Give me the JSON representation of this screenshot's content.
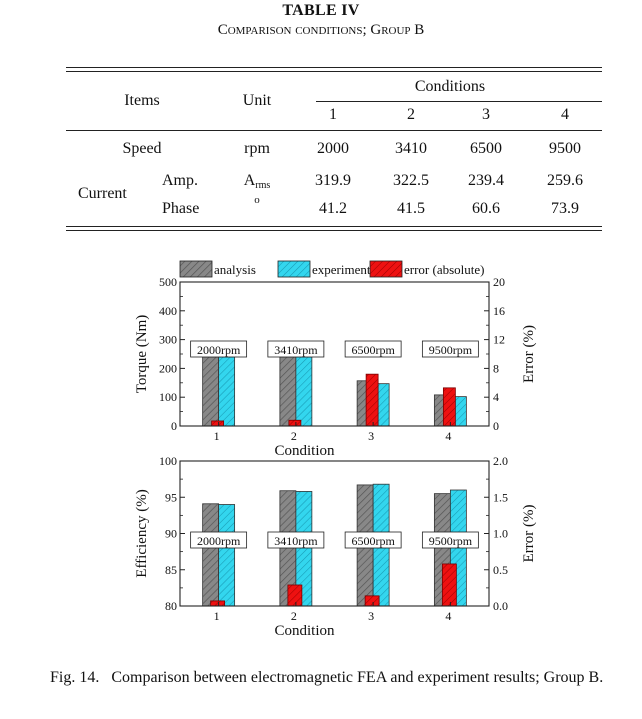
{
  "table": {
    "caption_title": "TABLE IV",
    "caption_sub": "Comparison conditions; Group B",
    "headers": {
      "items": "Items",
      "unit": "Unit",
      "conditions": "Conditions"
    },
    "condition_numbers": [
      "1",
      "2",
      "3",
      "4"
    ],
    "rows": {
      "speed": {
        "label": "Speed",
        "unit": "rpm",
        "values": [
          "2000",
          "3410",
          "6500",
          "9500"
        ]
      },
      "current_label": "Current",
      "amp": {
        "label": "Amp.",
        "unit_main": "A",
        "unit_sub": "rms",
        "values": [
          "319.9",
          "322.5",
          "239.4",
          "259.6"
        ]
      },
      "phase": {
        "label": "Phase",
        "unit": "o",
        "values": [
          "41.2",
          "41.5",
          "60.6",
          "73.9"
        ]
      }
    }
  },
  "chart_data": [
    {
      "type": "bar",
      "categories": [
        "1",
        "2",
        "3",
        "4"
      ],
      "category_tags": [
        "2000rpm",
        "3410rpm",
        "6500rpm",
        "9500rpm"
      ],
      "series": [
        {
          "name": "analysis",
          "axis": "left",
          "color": "#888888",
          "values": [
            240,
            240,
            157,
            108
          ]
        },
        {
          "name": "experiment",
          "axis": "left",
          "color": "#33d6ee",
          "values": [
            240,
            240,
            147,
            102
          ]
        },
        {
          "name": "error (absolute)",
          "axis": "right",
          "color": "#ee1111",
          "values": [
            0.7,
            0.8,
            7.2,
            5.3
          ]
        }
      ],
      "xlabel": "Condition",
      "ylabel": "Torque (Nm)",
      "ylabel_right": "Error (%)",
      "ylim": [
        0,
        500
      ],
      "ylim_right": [
        0,
        20
      ],
      "yticks": [
        "0",
        "100",
        "200",
        "300",
        "400",
        "500"
      ],
      "yticks_right": [
        "0",
        "4",
        "8",
        "12",
        "16",
        "20"
      ],
      "legend": "top"
    },
    {
      "type": "bar",
      "categories": [
        "1",
        "2",
        "3",
        "4"
      ],
      "category_tags": [
        "2000rpm",
        "3410rpm",
        "6500rpm",
        "9500rpm"
      ],
      "series": [
        {
          "name": "analysis",
          "axis": "left",
          "color": "#888888",
          "values": [
            94.1,
            95.9,
            96.7,
            95.5
          ]
        },
        {
          "name": "experiment",
          "axis": "left",
          "color": "#33d6ee",
          "values": [
            94.0,
            95.8,
            96.8,
            96.0
          ]
        },
        {
          "name": "error (absolute)",
          "axis": "right",
          "color": "#ee1111",
          "values": [
            0.07,
            0.29,
            0.14,
            0.58
          ]
        }
      ],
      "xlabel": "Condition",
      "ylabel": "Efficiency (%)",
      "ylabel_right": "Error (%)",
      "ylim": [
        80,
        100
      ],
      "ylim_right": [
        0,
        2
      ],
      "yticks": [
        "80",
        "85",
        "90",
        "95",
        "100"
      ],
      "yticks_right": [
        "0.0",
        "0.5",
        "1.0",
        "1.5",
        "2.0"
      ]
    }
  ],
  "figure_caption": {
    "label": "Fig. 14.",
    "text": "Comparison between electromagnetic FEA and experiment results; Group B."
  }
}
